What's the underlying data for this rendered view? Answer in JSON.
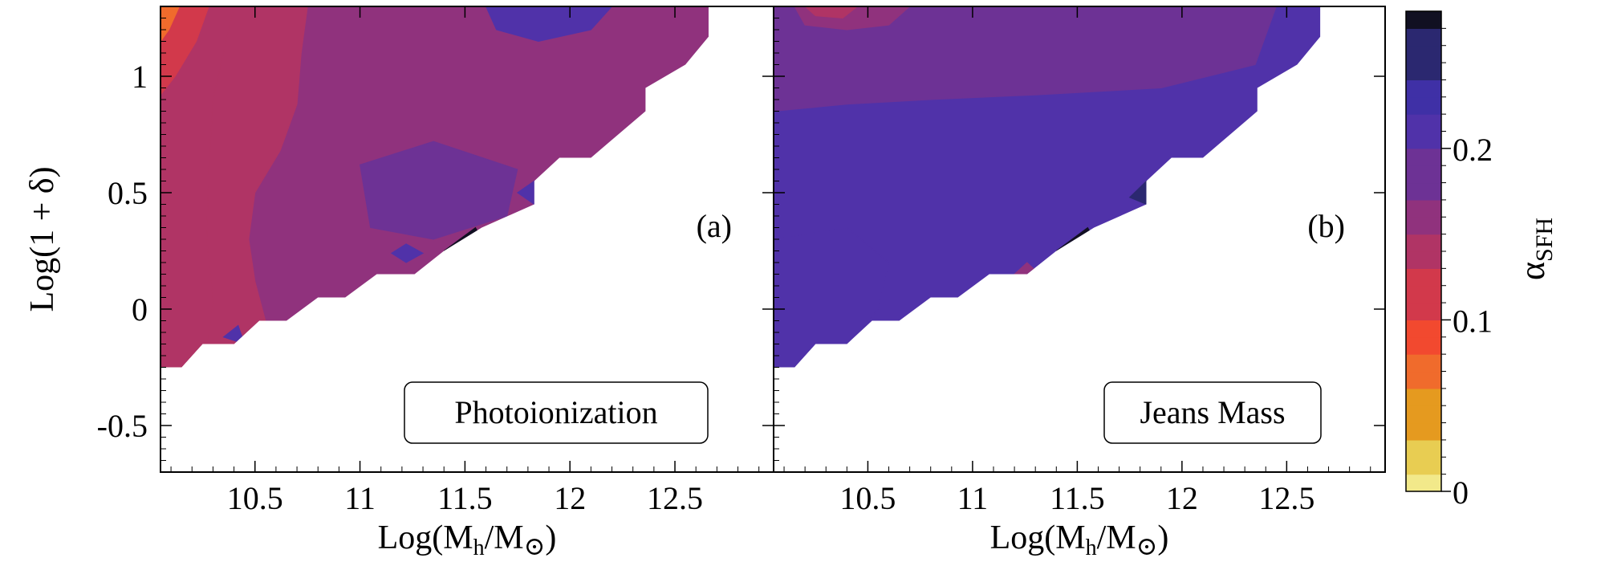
{
  "chart_data": {
    "type": "heatmap",
    "description_axes": "shared axes for two panels",
    "xlabel": "Log(M",
    "xlabel_sub1": "h",
    "xlabel_mid": "/M",
    "xlabel_sub2": "⊙",
    "xlabel_end": ")",
    "ylabel": "Log(1 + δ)",
    "xlim": [
      10.05,
      12.97
    ],
    "ylim": [
      -0.7,
      1.3
    ],
    "x_ticks": [
      10.5,
      11,
      11.5,
      12,
      12.5
    ],
    "x_tick_labels": [
      "10.5",
      "11",
      "11.5",
      "12",
      "12.5"
    ],
    "y_ticks": [
      -0.5,
      0,
      0.5,
      1
    ],
    "y_tick_labels": [
      "-0.5",
      "0",
      "0.5",
      "1"
    ],
    "colorbar": {
      "label_main": "α",
      "label_sub": "SFH",
      "range": [
        0,
        0.28
      ],
      "ticks": [
        0,
        0.1,
        0.2
      ],
      "tick_labels": [
        "0",
        "0.1",
        "0.2"
      ],
      "colors": [
        "#f2e98a",
        "#e8cd52",
        "#e59a1f",
        "#f06b2c",
        "#f2492f",
        "#d2394b",
        "#b03465",
        "#90327d",
        "#6d3295",
        "#5032a9",
        "#3f30a6",
        "#2b2870",
        "#111022"
      ]
    },
    "valid_region_upper_edge": [
      [
        10.05,
        1.3
      ],
      [
        12.66,
        1.3
      ],
      [
        12.66,
        1.17
      ],
      [
        12.55,
        1.05
      ],
      [
        12.36,
        0.95
      ],
      [
        12.36,
        0.85
      ],
      [
        12.1,
        0.65
      ],
      [
        11.95,
        0.65
      ],
      [
        11.83,
        0.55
      ],
      [
        11.83,
        0.45
      ],
      [
        11.58,
        0.35
      ],
      [
        11.4,
        0.25
      ],
      [
        11.26,
        0.15
      ],
      [
        11.08,
        0.15
      ],
      [
        10.93,
        0.05
      ],
      [
        10.8,
        0.05
      ],
      [
        10.65,
        -0.05
      ],
      [
        10.52,
        -0.05
      ],
      [
        10.4,
        -0.15
      ],
      [
        10.25,
        -0.15
      ],
      [
        10.15,
        -0.25
      ],
      [
        10.05,
        -0.25
      ]
    ],
    "panels": [
      {
        "tag": "(a)",
        "model": "Photoionization",
        "zones": [
          {
            "alpha": 0.17,
            "polygon": [
              [
                10.05,
                1.3
              ],
              [
                12.66,
                1.3
              ],
              [
                12.66,
                -0.25
              ],
              [
                10.05,
                -0.25
              ]
            ]
          },
          {
            "alpha": 0.15,
            "polygon": [
              [
                10.05,
                1.3
              ],
              [
                10.75,
                1.3
              ],
              [
                10.72,
                1.1
              ],
              [
                10.7,
                0.88
              ],
              [
                10.62,
                0.68
              ],
              [
                10.5,
                0.5
              ],
              [
                10.47,
                0.3
              ],
              [
                10.5,
                0.12
              ],
              [
                10.55,
                -0.05
              ],
              [
                10.4,
                -0.15
              ],
              [
                10.25,
                -0.15
              ],
              [
                10.15,
                -0.25
              ],
              [
                10.05,
                -0.25
              ]
            ]
          },
          {
            "alpha": 0.13,
            "polygon": [
              [
                10.05,
                1.3
              ],
              [
                10.4,
                1.3
              ],
              [
                10.35,
                1.1
              ],
              [
                10.3,
                0.9
              ],
              [
                10.28,
                0.6
              ],
              [
                10.27,
                0.3
              ],
              [
                10.3,
                0.05
              ],
              [
                10.28,
                -0.12
              ],
              [
                10.15,
                -0.25
              ],
              [
                10.05,
                -0.25
              ]
            ]
          },
          {
            "alpha": 0.11,
            "polygon": [
              [
                10.05,
                1.3
              ],
              [
                10.28,
                1.3
              ],
              [
                10.22,
                1.15
              ],
              [
                10.12,
                1.0
              ],
              [
                10.05,
                0.92
              ]
            ]
          },
          {
            "alpha": 0.07,
            "polygon": [
              [
                10.05,
                1.3
              ],
              [
                10.14,
                1.3
              ],
              [
                10.09,
                1.2
              ],
              [
                10.05,
                1.15
              ]
            ]
          },
          {
            "alpha": 0.185,
            "polygon": [
              [
                11.0,
                0.62
              ],
              [
                11.35,
                0.72
              ],
              [
                11.75,
                0.6
              ],
              [
                11.7,
                0.4
              ],
              [
                11.35,
                0.3
              ],
              [
                11.05,
                0.35
              ]
            ]
          },
          {
            "alpha": 0.21,
            "polygon": [
              [
                11.22,
                0.28
              ],
              [
                11.3,
                0.24
              ],
              [
                11.22,
                0.2
              ],
              [
                11.15,
                0.24
              ]
            ]
          },
          {
            "alpha": 0.28,
            "polygon": [
              [
                11.4,
                0.25
              ],
              [
                11.55,
                0.35
              ],
              [
                11.58,
                0.3
              ],
              [
                11.48,
                0.26
              ]
            ]
          },
          {
            "alpha": 0.21,
            "polygon": [
              [
                11.75,
                0.5
              ],
              [
                11.83,
                0.55
              ],
              [
                11.83,
                0.45
              ]
            ]
          },
          {
            "alpha": 0.2,
            "polygon": [
              [
                10.35,
                -0.12
              ],
              [
                10.42,
                -0.07
              ],
              [
                10.45,
                -0.15
              ]
            ]
          },
          {
            "alpha": 0.2,
            "polygon": [
              [
                11.6,
                1.3
              ],
              [
                12.2,
                1.3
              ],
              [
                12.1,
                1.2
              ],
              [
                11.85,
                1.15
              ],
              [
                11.65,
                1.2
              ]
            ]
          }
        ]
      },
      {
        "tag": "(b)",
        "model": "Jeans Mass",
        "zones": [
          {
            "alpha": 0.205,
            "polygon": [
              [
                10.05,
                1.3
              ],
              [
                12.66,
                1.3
              ],
              [
                12.66,
                -0.25
              ],
              [
                10.05,
                -0.25
              ]
            ]
          },
          {
            "alpha": 0.185,
            "polygon": [
              [
                10.05,
                1.3
              ],
              [
                12.45,
                1.3
              ],
              [
                12.35,
                1.05
              ],
              [
                11.9,
                0.95
              ],
              [
                11.3,
                0.92
              ],
              [
                10.8,
                0.9
              ],
              [
                10.4,
                0.88
              ],
              [
                10.05,
                0.85
              ]
            ]
          },
          {
            "alpha": 0.17,
            "polygon": [
              [
                10.15,
                1.3
              ],
              [
                10.7,
                1.3
              ],
              [
                10.6,
                1.22
              ],
              [
                10.4,
                1.2
              ],
              [
                10.2,
                1.22
              ]
            ]
          },
          {
            "alpha": 0.14,
            "polygon": [
              [
                10.2,
                1.3
              ],
              [
                10.45,
                1.3
              ],
              [
                10.38,
                1.25
              ],
              [
                10.25,
                1.26
              ]
            ]
          },
          {
            "alpha": 0.22,
            "polygon": [
              [
                10.05,
                0.3
              ],
              [
                10.4,
                0.35
              ],
              [
                10.6,
                0.2
              ],
              [
                10.55,
                0.0
              ],
              [
                10.4,
                -0.15
              ],
              [
                10.25,
                -0.15
              ],
              [
                10.15,
                -0.25
              ],
              [
                10.05,
                -0.25
              ]
            ]
          },
          {
            "alpha": 0.28,
            "polygon": [
              [
                11.4,
                0.25
              ],
              [
                11.55,
                0.35
              ],
              [
                11.58,
                0.3
              ],
              [
                11.48,
                0.26
              ]
            ]
          },
          {
            "alpha": 0.26,
            "polygon": [
              [
                11.75,
                0.48
              ],
              [
                11.83,
                0.55
              ],
              [
                11.83,
                0.45
              ]
            ]
          },
          {
            "alpha": 0.16,
            "polygon": [
              [
                11.2,
                0.15
              ],
              [
                11.26,
                0.2
              ],
              [
                11.32,
                0.15
              ]
            ]
          }
        ]
      }
    ]
  }
}
